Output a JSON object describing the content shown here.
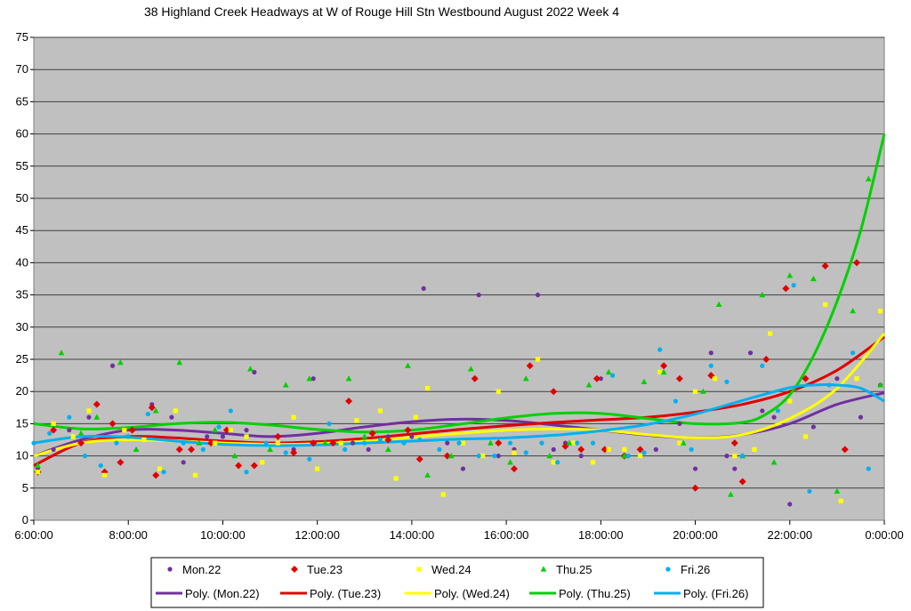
{
  "chart_data": {
    "type": "scatter",
    "title": "38 Highland Creek Headways at W of Rouge Hill Stn Westbound August 2022  Week 4",
    "xlabel": "",
    "ylabel": "",
    "x_ticks": [
      "6:00:00",
      "8:00:00",
      "10:00:00",
      "12:00:00",
      "14:00:00",
      "16:00:00",
      "18:00:00",
      "20:00:00",
      "22:00:00",
      "0:00:00"
    ],
    "x_range_hours": [
      6,
      24
    ],
    "y_ticks": [
      0,
      5,
      10,
      15,
      20,
      25,
      30,
      35,
      40,
      45,
      50,
      55,
      60,
      65,
      70,
      75
    ],
    "ylim": [
      0,
      75
    ],
    "grid": "horizontal",
    "legend_position": "bottom",
    "series": [
      {
        "name": "Mon.22",
        "marker": "circle",
        "color": "#7030A0",
        "x": [
          "6:05",
          "6:25",
          "6:45",
          "7:10",
          "7:40",
          "8:00",
          "8:30",
          "8:55",
          "9:10",
          "9:40",
          "10:00",
          "10:30",
          "10:40",
          "11:10",
          "11:30",
          "11:55",
          "12:20",
          "12:45",
          "13:05",
          "13:30",
          "14:00",
          "14:15",
          "14:45",
          "15:05",
          "15:25",
          "15:50",
          "16:10",
          "16:40",
          "17:00",
          "17:15",
          "17:35",
          "18:00",
          "18:30",
          "18:50",
          "19:10",
          "19:40",
          "20:00",
          "20:20",
          "20:40",
          "20:50",
          "21:10",
          "21:25",
          "21:40",
          "22:00",
          "22:30",
          "23:00",
          "23:30",
          "23:55"
        ],
        "y": [
          8,
          11,
          14,
          16,
          24,
          13,
          18,
          16,
          9,
          13,
          13,
          14,
          23,
          12,
          11,
          22,
          12,
          12,
          11,
          13,
          13,
          36,
          12,
          8,
          35,
          10,
          11,
          35,
          11,
          12,
          10,
          22,
          10,
          10,
          11,
          15,
          8,
          26,
          10,
          8,
          26,
          17,
          16,
          2.5,
          14.5,
          22,
          16,
          21
        ]
      },
      {
        "name": "Tue.23",
        "marker": "diamond",
        "color": "#E00000",
        "x": [
          "6:05",
          "6:25",
          "7:00",
          "7:20",
          "7:30",
          "7:40",
          "7:50",
          "8:05",
          "8:30",
          "8:35",
          "9:05",
          "9:20",
          "9:45",
          "10:05",
          "10:20",
          "10:40",
          "11:10",
          "11:30",
          "11:55",
          "12:20",
          "12:40",
          "13:10",
          "13:30",
          "13:55",
          "14:10",
          "14:45",
          "15:20",
          "15:50",
          "16:10",
          "16:30",
          "17:00",
          "17:15",
          "17:35",
          "17:55",
          "18:05",
          "18:30",
          "18:50",
          "19:20",
          "19:40",
          "20:00",
          "20:20",
          "20:50",
          "21:00",
          "21:30",
          "21:55",
          "22:20",
          "22:45",
          "23:10",
          "23:25"
        ],
        "y": [
          7.5,
          14,
          12,
          18,
          7.5,
          15,
          9,
          14,
          17.5,
          7,
          11,
          11,
          12,
          14,
          8.5,
          8.5,
          13,
          10.5,
          12,
          12,
          18.5,
          13.5,
          12.5,
          14,
          9.5,
          10,
          22,
          12,
          8,
          24,
          20,
          11.5,
          11,
          22,
          11,
          10,
          11,
          24,
          22,
          5,
          22.5,
          12,
          6,
          25,
          36,
          22,
          39.5,
          11,
          40
        ]
      },
      {
        "name": "Wed.24",
        "marker": "square",
        "color": "#FFFF00",
        "x": [
          "6:05",
          "6:25",
          "6:50",
          "7:10",
          "7:30",
          "7:55",
          "8:20",
          "8:40",
          "9:00",
          "9:25",
          "9:50",
          "10:10",
          "10:30",
          "10:50",
          "11:10",
          "11:30",
          "12:00",
          "12:30",
          "12:50",
          "13:20",
          "13:40",
          "14:05",
          "14:20",
          "14:40",
          "15:05",
          "15:30",
          "15:50",
          "16:10",
          "16:40",
          "17:00",
          "17:25",
          "17:50",
          "18:10",
          "18:30",
          "18:50",
          "19:15",
          "19:40",
          "20:00",
          "20:25",
          "20:50",
          "21:15",
          "21:35",
          "22:00",
          "22:20",
          "22:45",
          "23:05",
          "23:25",
          "23:55"
        ],
        "y": [
          7.5,
          15,
          13,
          17,
          7,
          14,
          12.5,
          8,
          17,
          7,
          12,
          14,
          13,
          9,
          12,
          16,
          8,
          12,
          15.5,
          17,
          6.5,
          16,
          20.5,
          4,
          12,
          10,
          20,
          10.5,
          25,
          9,
          12,
          9,
          11,
          11,
          10,
          23,
          12,
          20,
          22,
          10,
          11,
          29,
          18.5,
          13,
          33.5,
          3,
          22,
          32.5
        ]
      },
      {
        "name": "Thu.25",
        "marker": "triangle",
        "color": "#00D000",
        "x": [
          "6:05",
          "6:35",
          "7:00",
          "7:20",
          "7:50",
          "8:10",
          "8:35",
          "9:05",
          "9:30",
          "9:50",
          "10:15",
          "10:35",
          "11:00",
          "11:20",
          "11:50",
          "12:10",
          "12:40",
          "13:00",
          "13:30",
          "13:55",
          "14:20",
          "14:50",
          "15:15",
          "15:40",
          "16:05",
          "16:25",
          "16:55",
          "17:20",
          "17:45",
          "18:10",
          "18:30",
          "18:55",
          "19:20",
          "19:45",
          "20:10",
          "20:30",
          "20:45",
          "21:00",
          "21:25",
          "21:40",
          "22:00",
          "22:30",
          "23:00",
          "23:20",
          "23:40",
          "23:55"
        ],
        "y": [
          8.5,
          26,
          13.5,
          16,
          24.5,
          11,
          17,
          24.5,
          12,
          14,
          10,
          23.5,
          11,
          21,
          22,
          12,
          22,
          13,
          11,
          24,
          7,
          10,
          23.5,
          12,
          9,
          22,
          10,
          12,
          21,
          23,
          10,
          21.5,
          23,
          12,
          20,
          33.5,
          4,
          10,
          35,
          9,
          38,
          37.5,
          4.5,
          32.5,
          53,
          21
        ]
      },
      {
        "name": "Fri.26",
        "marker": "circle",
        "color": "#00B0F0",
        "x": [
          "6:00",
          "6:20",
          "6:45",
          "7:05",
          "7:25",
          "7:45",
          "8:00",
          "8:25",
          "8:45",
          "9:10",
          "9:35",
          "9:55",
          "10:10",
          "10:30",
          "10:55",
          "11:20",
          "11:50",
          "12:15",
          "12:35",
          "13:00",
          "13:20",
          "13:50",
          "14:10",
          "14:35",
          "15:00",
          "15:25",
          "15:45",
          "16:05",
          "16:25",
          "16:45",
          "17:05",
          "17:30",
          "17:50",
          "18:15",
          "18:35",
          "18:55",
          "19:15",
          "19:35",
          "19:55",
          "20:20",
          "20:40",
          "21:00",
          "21:25",
          "21:45",
          "22:05",
          "22:25",
          "22:50",
          "23:20",
          "23:40"
        ],
        "y": [
          12,
          13.5,
          16,
          10,
          8.5,
          12,
          13,
          16.5,
          7.5,
          12,
          11,
          14.5,
          17,
          7.5,
          12,
          10.5,
          9.5,
          15,
          11,
          12,
          12.5,
          12,
          12.5,
          11,
          12,
          10,
          10,
          12,
          10.5,
          12,
          9,
          12,
          12,
          22.5,
          10,
          10.5,
          26.5,
          18.5,
          11,
          24,
          21.5,
          10,
          24,
          17,
          36.5,
          4.5,
          21,
          26,
          8
        ]
      }
    ],
    "trendlines": [
      {
        "name": "Poly. (Mon.22)",
        "color": "#7030A0",
        "x": [
          "6:00",
          "7:00",
          "8:00",
          "9:00",
          "10:00",
          "11:00",
          "12:00",
          "13:00",
          "14:00",
          "15:00",
          "16:00",
          "17:00",
          "18:00",
          "19:00",
          "20:00",
          "21:00",
          "22:00",
          "23:00",
          "0:00"
        ],
        "y": [
          10,
          12.5,
          14,
          14,
          13.5,
          13,
          13.5,
          14.5,
          15.3,
          15.7,
          15.5,
          14.8,
          14,
          13.2,
          12.8,
          13.3,
          15,
          18,
          19.8
        ]
      },
      {
        "name": "Poly. (Tue.23)",
        "color": "#E00000",
        "x": [
          "6:00",
          "7:00",
          "8:00",
          "9:00",
          "10:00",
          "11:00",
          "12:00",
          "13:00",
          "14:00",
          "15:00",
          "16:00",
          "17:00",
          "18:00",
          "19:00",
          "20:00",
          "21:00",
          "22:00",
          "23:00",
          "0:00"
        ],
        "y": [
          8.5,
          12,
          13,
          12.8,
          12.3,
          12,
          12.2,
          12.7,
          13.4,
          14.1,
          14.7,
          15.2,
          15.6,
          16,
          16.8,
          18,
          20,
          23.3,
          28.5
        ]
      },
      {
        "name": "Poly. (Wed.24)",
        "color": "#FFFF00",
        "x": [
          "6:00",
          "7:00",
          "8:00",
          "9:00",
          "10:00",
          "11:00",
          "12:00",
          "13:00",
          "14:00",
          "15:00",
          "16:00",
          "17:00",
          "18:00",
          "19:00",
          "20:00",
          "21:00",
          "22:00",
          "23:00",
          "0:00"
        ],
        "y": [
          10,
          12,
          12.5,
          12.3,
          12,
          11.8,
          11.9,
          12.3,
          12.9,
          13.5,
          14,
          14.2,
          14,
          13.3,
          12.8,
          13.3,
          15.8,
          20.5,
          29
        ]
      },
      {
        "name": "Poly. (Thu.25)",
        "color": "#00D000",
        "x": [
          "6:00",
          "7:00",
          "8:00",
          "9:00",
          "10:00",
          "11:00",
          "12:00",
          "13:00",
          "14:00",
          "15:00",
          "16:00",
          "17:00",
          "18:00",
          "19:00",
          "20:00",
          "21:00",
          "21:30",
          "22:00",
          "22:30",
          "23:00",
          "23:30",
          "0:00"
        ],
        "y": [
          15,
          14.2,
          14.4,
          15,
          15.2,
          14.8,
          14.1,
          13.7,
          14,
          14.9,
          15.9,
          16.6,
          16.6,
          15.8,
          15,
          15.2,
          16.5,
          19.5,
          25.5,
          34,
          45,
          60
        ]
      },
      {
        "name": "Poly. (Fri.26)",
        "color": "#00B0F0",
        "x": [
          "6:00",
          "7:00",
          "8:00",
          "9:00",
          "10:00",
          "11:00",
          "12:00",
          "13:00",
          "14:00",
          "15:00",
          "16:00",
          "17:00",
          "18:00",
          "19:00",
          "20:00",
          "21:00",
          "22:00",
          "22:30",
          "23:00",
          "23:30",
          "0:00"
        ],
        "y": [
          12,
          13,
          12.9,
          12.3,
          11.8,
          11.6,
          11.7,
          12,
          12.3,
          12.6,
          12.8,
          13.2,
          13.9,
          14.9,
          16.5,
          18.6,
          20.6,
          21,
          21,
          20.5,
          18.5
        ]
      }
    ]
  }
}
